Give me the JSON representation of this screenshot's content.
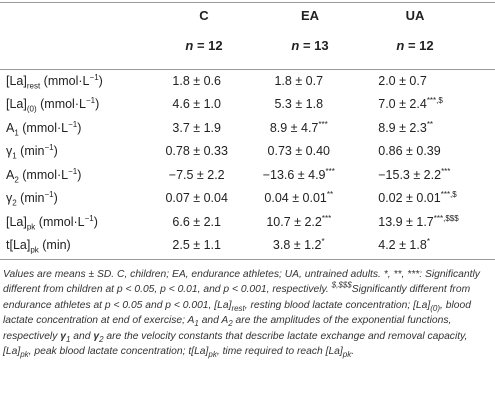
{
  "header": {
    "groups": [
      "C",
      "EA",
      "UA"
    ],
    "n_label": "n",
    "n_eq": " = ",
    "n_values": [
      "12",
      "13",
      "12"
    ]
  },
  "rows": [
    {
      "label": "[La]",
      "sub": "rest",
      "unit": " (mmol·L",
      "unit_sup": "−1",
      "unit_end": ")",
      "c": "1.8 ± 0.6",
      "ea": "1.8 ± 0.7",
      "ea_sup": "",
      "ua": "2.0 ± 0.7",
      "ua_sup": ""
    },
    {
      "label": "[La]",
      "sub": "(0)",
      "unit": " (mmol·L",
      "unit_sup": "−1",
      "unit_end": ")",
      "c": "4.6 ± 1.0",
      "ea": "5.3 ± 1.8",
      "ea_sup": "",
      "ua": "7.0 ± 2.4",
      "ua_sup": "***,$"
    },
    {
      "label": "A",
      "sub": "1",
      "unit": " (mmol·L",
      "unit_sup": "−1",
      "unit_end": ")",
      "c": "3.7 ± 1.9",
      "ea": "8.9 ± 4.7",
      "ea_sup": "***",
      "ua": "8.9 ± 2.3",
      "ua_sup": "**"
    },
    {
      "label": "γ",
      "sub": "1",
      "unit": " (min",
      "unit_sup": "−1",
      "unit_end": ")",
      "c": "0.78 ± 0.33",
      "ea": "0.73 ± 0.40",
      "ea_sup": "",
      "ua": "0.86 ± 0.39",
      "ua_sup": ""
    },
    {
      "label": "A",
      "sub": "2",
      "unit": " (mmol·L",
      "unit_sup": "−1",
      "unit_end": ")",
      "c": "−7.5 ± 2.2",
      "ea": "−13.6 ± 4.9",
      "ea_sup": "***",
      "ua": "−15.3 ± 2.2",
      "ua_sup": "***"
    },
    {
      "label": "γ",
      "sub": "2",
      "unit": " (min",
      "unit_sup": "−1",
      "unit_end": ")",
      "c": "0.07 ± 0.04",
      "ea": "0.04 ± 0.01",
      "ea_sup": "**",
      "ua": "0.02 ± 0.01",
      "ua_sup": "***,$"
    },
    {
      "label": "[La]",
      "sub": "pk",
      "unit": " (mmol·L",
      "unit_sup": "−1",
      "unit_end": ")",
      "c": "6.6 ± 2.1",
      "ea": "10.7 ± 2.2",
      "ea_sup": "***",
      "ua": "13.9 ± 1.7",
      "ua_sup": "***,$$$"
    },
    {
      "label": "t[La]",
      "sub": "pk",
      "unit": " (min)",
      "unit_sup": "",
      "unit_end": "",
      "c": "2.5 ± 1.1",
      "ea": "3.8 ± 1.2",
      "ea_sup": "*",
      "ua": "4.2 ± 1.8",
      "ua_sup": "*"
    }
  ],
  "footnote": {
    "p1": "Values are means ± SD. C, children; EA, endurance athletes; UA, untrained adults. *, **, ***: Significantly different from children at p < 0.05, p < 0.01, and p < 0.001, respectively.",
    "p2_sup": "$,$$$",
    "p2": "Significantly different from endurance athletes at p < 0.05 and p < 0.001, [La]",
    "p2_sub": "rest",
    "p3": ", resting blood lactate concentration; [La]",
    "p3_sub": "(0)",
    "p4": ", blood lactate concentration at end of exercise; A",
    "p4_sub1": "1",
    "p5": " and A",
    "p5_sub": "2",
    "p6": " are the amplitudes of the exponential functions, respectively ",
    "gamma1": "γ",
    "gamma1_sub": "1",
    "p7": " and ",
    "gamma2": "γ",
    "gamma2_sub": "2",
    "p8": " are the velocity constants that describe lactate exchange and removal capacity, [La]",
    "p8_sub": "pk",
    "p9": ", peak blood lactate concentration; t[La]",
    "p9_sub": "pk",
    "p10": ", time required to reach [La]",
    "p10_sub": "pk",
    "p11": "."
  }
}
